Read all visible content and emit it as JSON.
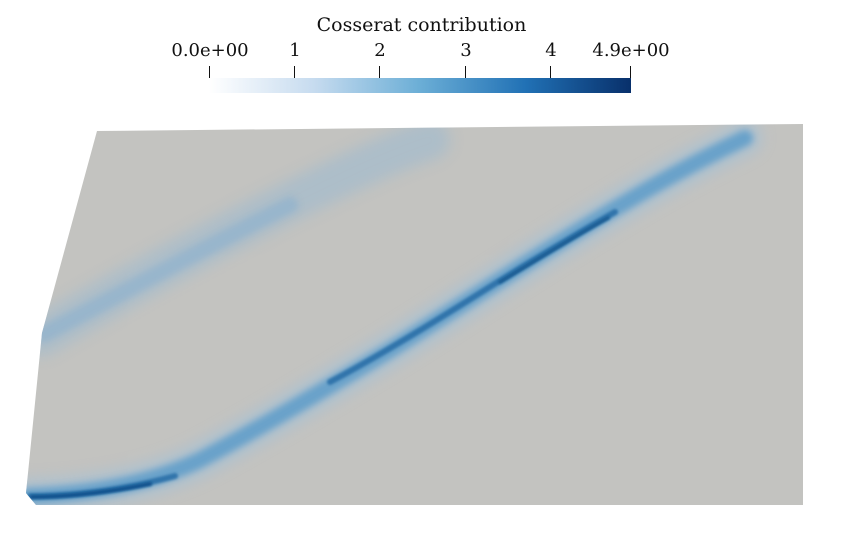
{
  "colorbar": {
    "title": "Cosserat contribution",
    "ticks": [
      {
        "label": "0.0e+00",
        "value": 0
      },
      {
        "label": "1",
        "value": 1
      },
      {
        "label": "2",
        "value": 2
      },
      {
        "label": "3",
        "value": 3
      },
      {
        "label": "4",
        "value": 4
      },
      {
        "label": "4.9e+00",
        "value": 4.9
      }
    ],
    "range": [
      0,
      4.9
    ],
    "colormap": [
      "#ffffff",
      "#c6dbef",
      "#6baed6",
      "#2171b5",
      "#08306b"
    ]
  },
  "colors": {
    "domain_background": "#c3c3c0",
    "background": "#ffffff"
  }
}
